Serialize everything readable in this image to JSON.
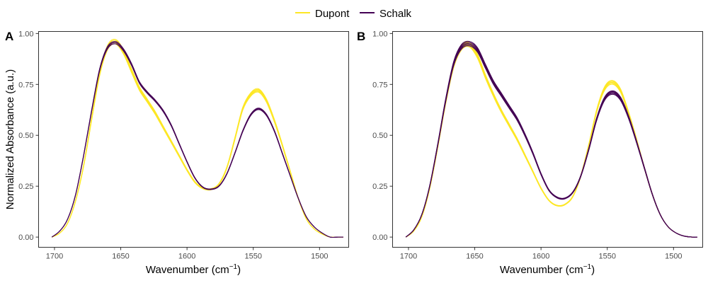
{
  "legend": {
    "entries": [
      {
        "name": "Dupont",
        "color": "#FDE725"
      },
      {
        "name": "Schalk",
        "color": "#440154"
      }
    ]
  },
  "chart_data": [
    {
      "type": "line",
      "panel_label": "A",
      "xlabel": "Wavenumber (cm",
      "xlabel_sup": "−1",
      "xlabel_close": ")",
      "ylabel": "Normalized Absorbance (a.u.)",
      "x_reversed": true,
      "xlim": [
        1712,
        1478
      ],
      "ylim": [
        -0.05,
        1.01
      ],
      "xticks": [
        1700,
        1650,
        1600,
        1550,
        1500
      ],
      "yticks": [
        0.0,
        0.25,
        0.5,
        0.75,
        1.0
      ],
      "ytick_labels": [
        "0.00",
        "0.25",
        "0.50",
        "0.75",
        "1.00"
      ],
      "grid": false,
      "series": [
        {
          "name": "Dupont",
          "color": "#FDE725",
          "replicates": 5,
          "x": [
            1702,
            1696,
            1690,
            1684,
            1678,
            1672,
            1666,
            1660,
            1654,
            1648,
            1642,
            1636,
            1630,
            1624,
            1618,
            1612,
            1606,
            1600,
            1594,
            1588,
            1582,
            1576,
            1570,
            1564,
            1558,
            1552,
            1546,
            1540,
            1534,
            1528,
            1522,
            1516,
            1510,
            1504,
            1498,
            1492,
            1486,
            1482
          ],
          "y": [
            0.0,
            0.02,
            0.07,
            0.18,
            0.35,
            0.58,
            0.8,
            0.93,
            0.96,
            0.91,
            0.82,
            0.73,
            0.67,
            0.61,
            0.54,
            0.47,
            0.4,
            0.33,
            0.27,
            0.24,
            0.235,
            0.26,
            0.34,
            0.48,
            0.63,
            0.7,
            0.72,
            0.67,
            0.57,
            0.45,
            0.32,
            0.19,
            0.09,
            0.04,
            0.015,
            0.0,
            0.0,
            0.0
          ]
        },
        {
          "name": "Schalk",
          "color": "#440154",
          "replicates": 3,
          "x": [
            1702,
            1696,
            1690,
            1684,
            1678,
            1672,
            1666,
            1660,
            1654,
            1648,
            1642,
            1636,
            1630,
            1624,
            1618,
            1612,
            1606,
            1600,
            1594,
            1588,
            1582,
            1576,
            1570,
            1564,
            1558,
            1552,
            1546,
            1540,
            1534,
            1528,
            1522,
            1516,
            1510,
            1504,
            1498,
            1492,
            1486,
            1482
          ],
          "y": [
            0.0,
            0.03,
            0.09,
            0.21,
            0.4,
            0.62,
            0.82,
            0.93,
            0.955,
            0.92,
            0.85,
            0.76,
            0.71,
            0.67,
            0.62,
            0.55,
            0.46,
            0.37,
            0.29,
            0.245,
            0.235,
            0.25,
            0.31,
            0.41,
            0.52,
            0.6,
            0.63,
            0.6,
            0.52,
            0.41,
            0.3,
            0.19,
            0.1,
            0.05,
            0.02,
            0.0,
            0.0,
            0.0
          ]
        }
      ]
    },
    {
      "type": "line",
      "panel_label": "B",
      "xlabel": "Wavenumber (cm",
      "xlabel_sup": "−1",
      "xlabel_close": ")",
      "x_reversed": true,
      "xlim": [
        1712,
        1478
      ],
      "ylim": [
        -0.05,
        1.01
      ],
      "xticks": [
        1700,
        1650,
        1600,
        1550,
        1500
      ],
      "yticks": [
        0.0,
        0.25,
        0.5,
        0.75,
        1.0
      ],
      "ytick_labels": [
        "0.00",
        "0.25",
        "0.50",
        "0.75",
        "1.00"
      ],
      "grid": false,
      "series": [
        {
          "name": "Dupont",
          "color": "#FDE725",
          "replicates": 5,
          "x": [
            1702,
            1696,
            1690,
            1684,
            1678,
            1672,
            1666,
            1660,
            1654,
            1648,
            1642,
            1636,
            1630,
            1624,
            1618,
            1612,
            1606,
            1600,
            1594,
            1588,
            1582,
            1576,
            1570,
            1564,
            1558,
            1552,
            1546,
            1540,
            1534,
            1528,
            1522,
            1516,
            1510,
            1504,
            1498,
            1492,
            1486,
            1482
          ],
          "y": [
            0.0,
            0.03,
            0.1,
            0.24,
            0.44,
            0.66,
            0.84,
            0.93,
            0.945,
            0.89,
            0.79,
            0.7,
            0.62,
            0.55,
            0.48,
            0.4,
            0.32,
            0.24,
            0.18,
            0.155,
            0.16,
            0.2,
            0.3,
            0.45,
            0.62,
            0.73,
            0.76,
            0.72,
            0.61,
            0.48,
            0.34,
            0.21,
            0.11,
            0.05,
            0.02,
            0.005,
            0.0,
            0.0
          ]
        },
        {
          "name": "Schalk",
          "color": "#440154",
          "replicates": 5,
          "x": [
            1702,
            1696,
            1690,
            1684,
            1678,
            1672,
            1666,
            1660,
            1654,
            1648,
            1642,
            1636,
            1630,
            1624,
            1618,
            1612,
            1606,
            1600,
            1594,
            1588,
            1582,
            1576,
            1570,
            1564,
            1558,
            1552,
            1546,
            1540,
            1534,
            1528,
            1522,
            1516,
            1510,
            1504,
            1498,
            1492,
            1486,
            1482
          ],
          "y": [
            0.0,
            0.035,
            0.11,
            0.25,
            0.45,
            0.67,
            0.85,
            0.935,
            0.95,
            0.92,
            0.84,
            0.76,
            0.7,
            0.64,
            0.58,
            0.5,
            0.41,
            0.31,
            0.23,
            0.195,
            0.19,
            0.22,
            0.3,
            0.43,
            0.58,
            0.68,
            0.71,
            0.68,
            0.59,
            0.47,
            0.34,
            0.21,
            0.11,
            0.05,
            0.02,
            0.005,
            0.0,
            0.0
          ]
        }
      ]
    }
  ]
}
